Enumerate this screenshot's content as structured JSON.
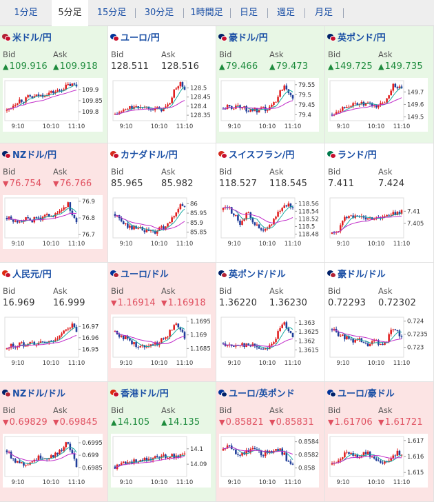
{
  "tabs": [
    {
      "label": "1分足",
      "active": false
    },
    {
      "label": "5分足",
      "active": true
    },
    {
      "label": "15分足",
      "active": false
    },
    {
      "label": "30分足",
      "active": false
    },
    {
      "label": "1時間足",
      "active": false
    },
    {
      "label": "日足",
      "active": false
    },
    {
      "label": "週足",
      "active": false
    },
    {
      "label": "月足",
      "active": false
    }
  ],
  "colors": {
    "up_text": "#1d8b3c",
    "down_text": "#e05060",
    "flat_text": "#333333",
    "up_bg": "#e8f7e5",
    "down_bg": "#fce4e4",
    "flat_bg": "#ffffff",
    "candle_up": "#e02020",
    "candle_down": "#1f3d99",
    "ma_short": "#17a9a0",
    "ma_long": "#c02ac8"
  },
  "x_ticks": [
    "9:10",
    "10:10",
    "11:10"
  ],
  "panels": [
    {
      "name": "米ドル/円",
      "flag": [
        "#b22234",
        "#c8102e"
      ],
      "trend": "up",
      "bid_label": "Bid",
      "ask_label": "Ask",
      "bid": "109.916",
      "ask": "109.918",
      "chart": {
        "y_ticks": [
          "109.9",
          "109.85",
          "109.8"
        ],
        "y_values": [
          109.9,
          109.85,
          109.8
        ],
        "ylim": [
          109.76,
          109.94
        ],
        "path": [
          0.25,
          0.35,
          0.45,
          0.52,
          0.5,
          0.6,
          0.58,
          0.62,
          0.63,
          0.68,
          0.7,
          0.72,
          0.75,
          0.82,
          0.88,
          0.9,
          0.87
        ]
      }
    },
    {
      "name": "ユーロ/円",
      "flag": [
        "#003399",
        "#c8102e"
      ],
      "trend": "flat",
      "bid_label": "Bid",
      "ask_label": "Ask",
      "bid": "128.511",
      "ask": "128.516",
      "chart": {
        "y_ticks": [
          "128.5",
          "128.45",
          "128.4",
          "128.35"
        ],
        "y_values": [
          128.5,
          128.45,
          128.4,
          128.35
        ],
        "ylim": [
          128.32,
          128.54
        ],
        "path": [
          0.15,
          0.2,
          0.25,
          0.3,
          0.35,
          0.3,
          0.38,
          0.32,
          0.35,
          0.3,
          0.28,
          0.3,
          0.35,
          0.55,
          0.85,
          0.92,
          0.8
        ]
      }
    },
    {
      "name": "豪ドル/円",
      "flag": [
        "#012169",
        "#c8102e"
      ],
      "trend": "up",
      "bid_label": "Bid",
      "ask_label": "Ask",
      "bid": "79.466",
      "ask": "79.473",
      "chart": {
        "y_ticks": [
          "79.55",
          "79.5",
          "79.45",
          "79.4"
        ],
        "y_values": [
          79.55,
          79.5,
          79.45,
          79.4
        ],
        "ylim": [
          79.37,
          79.57
        ],
        "path": [
          0.3,
          0.35,
          0.3,
          0.4,
          0.35,
          0.3,
          0.25,
          0.28,
          0.2,
          0.3,
          0.25,
          0.35,
          0.5,
          0.7,
          0.9,
          0.75,
          0.6
        ]
      }
    },
    {
      "name": "英ポンド/円",
      "flag": [
        "#012169",
        "#c8102e"
      ],
      "trend": "up",
      "bid_label": "Bid",
      "ask_label": "Ask",
      "bid": "149.725",
      "ask": "149.735",
      "chart": {
        "y_ticks": [
          "149.7",
          "149.6",
          "149.5"
        ],
        "y_values": [
          149.7,
          149.6,
          149.5
        ],
        "ylim": [
          149.47,
          149.79
        ],
        "path": [
          0.15,
          0.25,
          0.3,
          0.35,
          0.4,
          0.38,
          0.45,
          0.4,
          0.42,
          0.38,
          0.35,
          0.4,
          0.45,
          0.65,
          0.9,
          0.85,
          0.75
        ]
      }
    },
    {
      "name": "NZドル/円",
      "flag": [
        "#012169",
        "#c8102e"
      ],
      "trend": "down",
      "bid_label": "Bid",
      "ask_label": "Ask",
      "bid": "76.754",
      "ask": "76.766",
      "chart": {
        "y_ticks": [
          "76.9",
          "76.8",
          "76.7"
        ],
        "y_values": [
          76.9,
          76.8,
          76.7
        ],
        "ylim": [
          76.68,
          76.92
        ],
        "path": [
          0.5,
          0.45,
          0.4,
          0.45,
          0.48,
          0.42,
          0.45,
          0.5,
          0.48,
          0.55,
          0.6,
          0.55,
          0.65,
          0.75,
          0.85,
          0.6,
          0.35
        ]
      }
    },
    {
      "name": "カナダドル/円",
      "flag": [
        "#d52b1e",
        "#c8102e"
      ],
      "trend": "flat",
      "bid_label": "Bid",
      "ask_label": "Ask",
      "bid": "85.965",
      "ask": "85.982",
      "chart": {
        "y_ticks": [
          "86",
          "85.95",
          "85.9",
          "85.85"
        ],
        "y_values": [
          86.0,
          85.95,
          85.9,
          85.85
        ],
        "ylim": [
          85.82,
          86.03
        ],
        "path": [
          0.6,
          0.45,
          0.35,
          0.3,
          0.25,
          0.3,
          0.2,
          0.15,
          0.18,
          0.12,
          0.2,
          0.25,
          0.3,
          0.45,
          0.65,
          0.85,
          0.75
        ]
      }
    },
    {
      "name": "スイスフラン/円",
      "flag": [
        "#d52b1e",
        "#c8102e"
      ],
      "trend": "flat",
      "bid_label": "Bid",
      "ask_label": "Ask",
      "bid": "118.527",
      "ask": "118.545",
      "chart": {
        "y_ticks": [
          "118.56",
          "118.54",
          "118.52",
          "118.5",
          "118.48"
        ],
        "y_values": [
          118.56,
          118.54,
          118.52,
          118.5,
          118.48
        ],
        "ylim": [
          118.47,
          118.575
        ],
        "path": [
          0.7,
          0.8,
          0.65,
          0.5,
          0.35,
          0.55,
          0.6,
          0.4,
          0.25,
          0.15,
          0.2,
          0.35,
          0.55,
          0.7,
          0.8,
          0.85,
          0.75
        ]
      }
    },
    {
      "name": "ランド/円",
      "flag": [
        "#007a4d",
        "#c8102e"
      ],
      "trend": "flat",
      "bid_label": "Bid",
      "ask_label": "Ask",
      "bid": "7.411",
      "ask": "7.424",
      "chart": {
        "y_ticks": [
          "7.41",
          "7.405"
        ],
        "y_values": [
          7.41,
          7.405
        ],
        "ylim": [
          7.399,
          7.4155
        ],
        "path": [
          0.1,
          0.15,
          0.3,
          0.5,
          0.6,
          0.55,
          0.5,
          0.52,
          0.48,
          0.5,
          0.5,
          0.52,
          0.55,
          0.55,
          0.6,
          0.62,
          0.7
        ]
      }
    },
    {
      "name": "人民元/円",
      "flag": [
        "#de2910",
        "#c8102e"
      ],
      "trend": "flat",
      "bid_label": "Bid",
      "ask_label": "Ask",
      "bid": "16.969",
      "ask": "16.999",
      "chart": {
        "y_ticks": [
          "16.97",
          "16.96",
          "16.95"
        ],
        "y_values": [
          16.97,
          16.96,
          16.95
        ],
        "ylim": [
          16.943,
          16.978
        ],
        "path": [
          0.2,
          0.3,
          0.25,
          0.35,
          0.3,
          0.4,
          0.35,
          0.3,
          0.4,
          0.35,
          0.4,
          0.45,
          0.5,
          0.6,
          0.75,
          0.8,
          0.65
        ]
      }
    },
    {
      "name": "ユーロ/ドル",
      "flag": [
        "#003399",
        "#b22234"
      ],
      "trend": "down",
      "bid_label": "Bid",
      "ask_label": "Ask",
      "bid": "1.16914",
      "ask": "1.16918",
      "chart": {
        "y_ticks": [
          "1.1695",
          "1.169",
          "1.1685"
        ],
        "y_values": [
          1.1695,
          1.169,
          1.1685
        ],
        "ylim": [
          1.16818,
          1.16965
        ],
        "path": [
          0.65,
          0.55,
          0.5,
          0.45,
          0.35,
          0.3,
          0.25,
          0.3,
          0.35,
          0.3,
          0.38,
          0.45,
          0.55,
          0.7,
          0.85,
          0.75,
          0.5
        ]
      }
    },
    {
      "name": "英ポンド/ドル",
      "flag": [
        "#012169",
        "#b22234"
      ],
      "trend": "flat",
      "bid_label": "Bid",
      "ask_label": "Ask",
      "bid": "1.36220",
      "ask": "1.36230",
      "chart": {
        "y_ticks": [
          "1.363",
          "1.3625",
          "1.362",
          "1.3615"
        ],
        "y_values": [
          1.363,
          1.3625,
          1.362,
          1.3615
        ],
        "ylim": [
          1.3611,
          1.3633
        ],
        "path": [
          0.35,
          0.3,
          0.25,
          0.3,
          0.35,
          0.3,
          0.28,
          0.3,
          0.25,
          0.2,
          0.25,
          0.3,
          0.45,
          0.7,
          0.85,
          0.7,
          0.55
        ]
      }
    },
    {
      "name": "豪ドル/ドル",
      "flag": [
        "#012169",
        "#b22234"
      ],
      "trend": "flat",
      "bid_label": "Bid",
      "ask_label": "Ask",
      "bid": "0.72293",
      "ask": "0.72302",
      "chart": {
        "y_ticks": [
          "0.724",
          "0.7235",
          "0.723"
        ],
        "y_values": [
          0.724,
          0.7235,
          0.723
        ],
        "ylim": [
          0.72262,
          0.72415
        ],
        "path": [
          0.7,
          0.6,
          0.55,
          0.45,
          0.5,
          0.4,
          0.45,
          0.35,
          0.3,
          0.35,
          0.4,
          0.3,
          0.35,
          0.5,
          0.75,
          0.7,
          0.45
        ]
      }
    },
    {
      "name": "NZドル/ドル",
      "flag": [
        "#012169",
        "#b22234"
      ],
      "trend": "down",
      "bid_label": "Bid",
      "ask_label": "Ask",
      "bid": "0.69829",
      "ask": "0.69845",
      "chart": {
        "y_ticks": [
          "0.6995",
          "0.699",
          "0.6985"
        ],
        "y_values": [
          0.6995,
          0.699,
          0.6985
        ],
        "ylim": [
          0.69815,
          0.69975
        ],
        "path": [
          0.65,
          0.5,
          0.4,
          0.35,
          0.3,
          0.35,
          0.4,
          0.45,
          0.5,
          0.45,
          0.5,
          0.55,
          0.6,
          0.75,
          0.85,
          0.6,
          0.2
        ]
      }
    },
    {
      "name": "香港ドル/円",
      "flag": [
        "#de2910",
        "#c8102e"
      ],
      "trend": "up",
      "bid_label": "Bid",
      "ask_label": "Ask",
      "bid": "14.105",
      "ask": "14.135",
      "chart": {
        "y_ticks": [
          "14.1",
          "14.09"
        ],
        "y_values": [
          14.1,
          14.09
        ],
        "ylim": [
          14.082,
          14.108
        ],
        "path": [
          0.25,
          0.3,
          0.35,
          0.4,
          0.35,
          0.4,
          0.45,
          0.4,
          0.45,
          0.5,
          0.45,
          0.5,
          0.5,
          0.55,
          0.5,
          0.55,
          0.55
        ]
      }
    },
    {
      "name": "ユーロ/英ポンド",
      "flag": [
        "#003399",
        "#012169"
      ],
      "trend": "down",
      "bid_label": "Bid",
      "ask_label": "Ask",
      "bid": "0.85821",
      "ask": "0.85831",
      "chart": {
        "y_ticks": [
          "0.8584",
          "0.8582",
          "0.858"
        ],
        "y_values": [
          0.8584,
          0.8582,
          0.858
        ],
        "ylim": [
          0.85787,
          0.85848
        ],
        "path": [
          0.65,
          0.75,
          0.7,
          0.6,
          0.55,
          0.6,
          0.65,
          0.7,
          0.6,
          0.55,
          0.6,
          0.65,
          0.7,
          0.65,
          0.55,
          0.35,
          0.3
        ]
      }
    },
    {
      "name": "ユーロ/豪ドル",
      "flag": [
        "#003399",
        "#012169"
      ],
      "trend": "down",
      "bid_label": "Bid",
      "ask_label": "Ask",
      "bid": "1.61706",
      "ask": "1.61721",
      "chart": {
        "y_ticks": [
          "1.617",
          "1.616",
          "1.615"
        ],
        "y_values": [
          1.617,
          1.616,
          1.615
        ],
        "ylim": [
          1.61475,
          1.61725
        ],
        "path": [
          0.3,
          0.4,
          0.5,
          0.55,
          0.6,
          0.55,
          0.5,
          0.55,
          0.6,
          0.5,
          0.45,
          0.4,
          0.35,
          0.4,
          0.55,
          0.6,
          0.55
        ]
      }
    }
  ]
}
